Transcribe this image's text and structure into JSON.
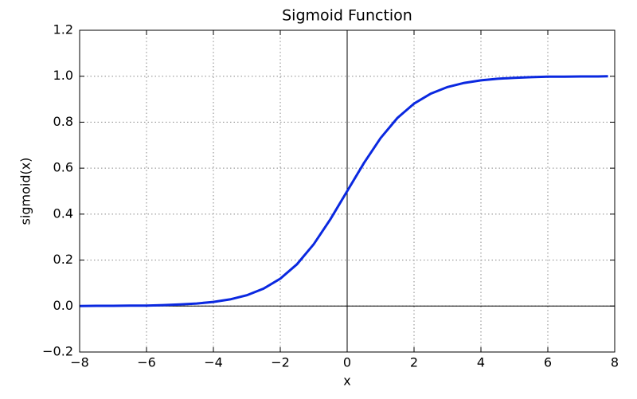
{
  "chart_data": {
    "type": "line",
    "title": "Sigmoid Function",
    "x_label": "x",
    "y_label": "sigmoid(x)",
    "x": [
      -8,
      -7.5,
      -7,
      -6.5,
      -6,
      -5.5,
      -5,
      -4.5,
      -4,
      -3.5,
      -3,
      -2.5,
      -2,
      -1.5,
      -1,
      -0.5,
      0,
      0.5,
      1,
      1.5,
      2,
      2.5,
      3,
      3.5,
      4,
      4.5,
      5,
      5.5,
      6,
      6.5,
      7,
      7.5,
      7.8
    ],
    "series": [
      {
        "name": "sigmoid",
        "color": "#0a28e0",
        "values": [
          0.0,
          0.001,
          0.001,
          0.002,
          0.002,
          0.004,
          0.007,
          0.011,
          0.018,
          0.029,
          0.047,
          0.076,
          0.119,
          0.182,
          0.269,
          0.378,
          0.5,
          0.622,
          0.731,
          0.818,
          0.881,
          0.924,
          0.953,
          0.971,
          0.982,
          0.989,
          0.993,
          0.996,
          0.998,
          0.998,
          0.999,
          0.999,
          1.0
        ]
      }
    ],
    "xlim": [
      -8,
      8
    ],
    "ylim": [
      -0.2,
      1.2
    ],
    "xticks": [
      {
        "value": -8,
        "label": "−8"
      },
      {
        "value": -6,
        "label": "−6"
      },
      {
        "value": -4,
        "label": "−4"
      },
      {
        "value": -2,
        "label": "−2"
      },
      0,
      2,
      4,
      6,
      8
    ],
    "yticks": [
      {
        "value": -0.2,
        "label": "−0.2"
      },
      {
        "value": 0,
        "label": "0.0"
      },
      0.2,
      0.4,
      0.6,
      0.8,
      {
        "value": 1,
        "label": "1.0"
      },
      1.2
    ],
    "hlines": [
      0
    ],
    "vlines": [
      0
    ],
    "grid": true
  }
}
